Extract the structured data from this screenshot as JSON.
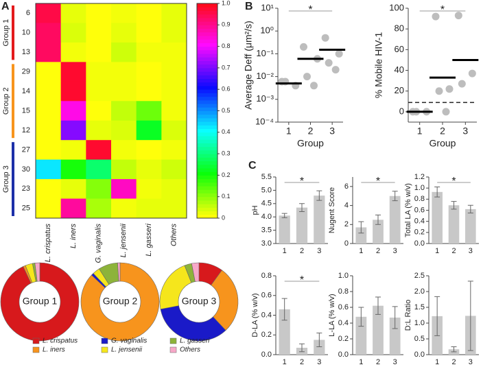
{
  "chart_data": [
    {
      "type": "heatmap",
      "panel": "A",
      "columns": [
        "L. crispatus",
        "L. iners",
        "G. vaginalis",
        "L. jensenii",
        "L. gasseri",
        "Others"
      ],
      "groups": [
        {
          "name": "Group 1",
          "color": "#e31a1c",
          "rows": [
            "6",
            "10",
            "13"
          ],
          "values": [
            [
              0.95,
              0.02,
              0,
              0.01,
              0,
              0.02
            ],
            [
              0.93,
              0.03,
              0,
              0.02,
              0,
              0.02
            ],
            [
              0.93,
              0.01,
              0,
              0.04,
              0.01,
              0.01
            ]
          ]
        },
        {
          "name": "Group 2",
          "color": "#f7941d",
          "rows": [
            "29",
            "14",
            "15",
            "12"
          ],
          "values": [
            [
              0,
              0.97,
              0.01,
              0.01,
              0,
              0.01
            ],
            [
              0,
              0.97,
              0.01,
              0.01,
              0,
              0.01
            ],
            [
              0,
              0.82,
              0,
              0.05,
              0.12,
              0.01
            ],
            [
              0,
              0.7,
              0.02,
              0.03,
              0.22,
              0.03
            ]
          ]
        },
        {
          "name": "Group 3",
          "color": "#1c2fa8",
          "rows": [
            "27",
            "30",
            "23",
            "25"
          ],
          "values": [
            [
              0,
              0.01,
              0.97,
              0.01,
              0,
              0.01
            ],
            [
              0.42,
              0.19,
              0.28,
              0.05,
              0.02,
              0.04
            ],
            [
              0,
              0.02,
              0.1,
              0.85,
              0.01,
              0.02
            ],
            [
              0,
              0.88,
              0.07,
              0.01,
              0.02,
              0.02
            ]
          ]
        }
      ],
      "colorbar": {
        "lim": [
          0,
          1
        ],
        "ticks": [
          0,
          0.1,
          0.2,
          0.3,
          0.4,
          0.5,
          0.6,
          0.7,
          0.8,
          0.9,
          {
            "value": 1,
            "label": "1.0"
          }
        ]
      }
    },
    {
      "type": "pie",
      "categories": [
        "L. crispatus",
        "L. iners",
        "G. vaginalis",
        "L. jensenii",
        "L. gasseri",
        "Others"
      ],
      "colors": [
        "#d7191c",
        "#f7941d",
        "#1a1ac8",
        "#f5e61c",
        "#8db33a",
        "#f7a8c8"
      ],
      "groups": [
        {
          "name": "Group 1",
          "values": [
            93,
            1,
            0,
            3,
            1,
            2
          ]
        },
        {
          "name": "Group 2",
          "values": [
            0,
            87,
            1,
            3,
            8,
            1
          ]
        },
        {
          "name": "Group 3",
          "values": [
            10,
            28,
            34,
            22,
            3,
            3
          ]
        }
      ]
    },
    {
      "type": "scatter",
      "panel": "B",
      "ylabel": "Average Deff (μm²/s)",
      "xlabel": "Group",
      "log_scale": true,
      "x": [
        1,
        1,
        1,
        2,
        2,
        2,
        2,
        3,
        3,
        3,
        3
      ],
      "values": [
        0.006,
        0.004,
        0.006,
        0.2,
        0.06,
        0.01,
        0.004,
        0.5,
        0.1,
        0.04,
        0.02
      ],
      "means": [
        0.005,
        0.06,
        0.15
      ],
      "color": "#bdbdbd",
      "significance": "*",
      "xlim": [
        0.5,
        3.5
      ],
      "xticks": [
        1,
        2,
        3
      ],
      "ylim": [
        0.0001,
        10
      ],
      "yticks": [
        {
          "value": 0.0001,
          "label": "10⁻⁴"
        },
        {
          "value": 0.001,
          "label": "10⁻³"
        },
        {
          "value": 0.01,
          "label": "10⁻²"
        },
        {
          "value": 0.1,
          "label": "10⁻¹"
        },
        {
          "value": 1,
          "label": "10⁰"
        },
        {
          "value": 10,
          "label": "10¹"
        }
      ]
    },
    {
      "type": "scatter",
      "ylabel": "% Mobile HIV-1",
      "xlabel": "Group",
      "x": [
        1,
        1,
        1,
        2,
        2,
        2,
        2,
        3,
        3,
        3
      ],
      "values": [
        0,
        0,
        0,
        92,
        22,
        20,
        0,
        93,
        37,
        27
      ],
      "means": [
        0,
        33,
        50
      ],
      "color": "#bdbdbd",
      "significance": "*",
      "threshold": 9,
      "xlim": [
        0.5,
        3.5
      ],
      "xticks": [
        1,
        2,
        3
      ],
      "ylim": [
        -10,
        100
      ],
      "yticks": [
        0,
        20,
        40,
        60,
        80,
        100
      ]
    },
    {
      "type": "bar",
      "panel": "C",
      "ylabel": "pH",
      "categories": [
        "1",
        "2",
        "3"
      ],
      "values": [
        4.05,
        4.35,
        4.8
      ],
      "errors": [
        0.08,
        0.15,
        0.18
      ],
      "color": "#c8c8c8",
      "significance": "*",
      "ylim": [
        3,
        5.5
      ],
      "yticks": [
        {
          "value": 3,
          "label": "3.0"
        },
        3.5,
        {
          "value": 4,
          "label": "4.0"
        },
        4.5,
        {
          "value": 5,
          "label": "5.0"
        },
        5.5
      ]
    },
    {
      "type": "bar",
      "ylabel": "Nugent Score",
      "categories": [
        "1",
        "2",
        "3"
      ],
      "values": [
        1.7,
        2.5,
        5.0
      ],
      "errors": [
        0.6,
        0.5,
        0.5
      ],
      "color": "#c8c8c8",
      "significance": "*",
      "ylim": [
        0,
        7
      ],
      "yticks": [
        0,
        2,
        4,
        6
      ]
    },
    {
      "type": "bar",
      "ylabel": "Total LA (% w/v)",
      "categories": [
        "1",
        "2",
        "3"
      ],
      "values": [
        0.93,
        0.69,
        0.62
      ],
      "errors": [
        0.09,
        0.07,
        0.07
      ],
      "color": "#c8c8c8",
      "significance": "*",
      "ylim": [
        0,
        1.2
      ],
      "yticks": [
        {
          "value": 0,
          "label": "0.0"
        },
        0.2,
        0.4,
        0.6,
        0.8,
        {
          "value": 1,
          "label": "1.0"
        },
        1.2
      ]
    },
    {
      "type": "bar",
      "ylabel": "D-LA (% w/v)",
      "categories": [
        "1",
        "2",
        "3"
      ],
      "values": [
        0.46,
        0.07,
        0.15
      ],
      "errors": [
        0.11,
        0.04,
        0.07
      ],
      "color": "#c8c8c8",
      "significance": "*",
      "ylim": [
        0,
        0.8
      ],
      "yticks": [
        {
          "value": 0,
          "label": "0.0"
        },
        0.2,
        0.4,
        0.6,
        0.8
      ]
    },
    {
      "type": "bar",
      "ylabel": "L-LA (% w/v)",
      "categories": [
        "1",
        "2",
        "3"
      ],
      "values": [
        0.48,
        0.62,
        0.47
      ],
      "errors": [
        0.12,
        0.11,
        0.14
      ],
      "color": "#c8c8c8",
      "ylim": [
        0,
        1
      ],
      "yticks": [
        {
          "value": 0,
          "label": "0.0"
        },
        0.2,
        0.4,
        0.6,
        0.8,
        {
          "value": 1,
          "label": "1.0"
        }
      ]
    },
    {
      "type": "bar",
      "ylabel": "D:L Ratio",
      "categories": [
        "1",
        "2",
        "3"
      ],
      "values": [
        1.22,
        0.17,
        1.23
      ],
      "errors": [
        0.62,
        0.08,
        1.1
      ],
      "color": "#c8c8c8",
      "ylim": [
        0,
        2.5
      ],
      "yticks": [
        {
          "value": 0,
          "label": "0.0"
        },
        0.5,
        {
          "value": 1,
          "label": "1.0"
        },
        1.5,
        {
          "value": 2,
          "label": "2.0"
        },
        2.5
      ]
    }
  ]
}
